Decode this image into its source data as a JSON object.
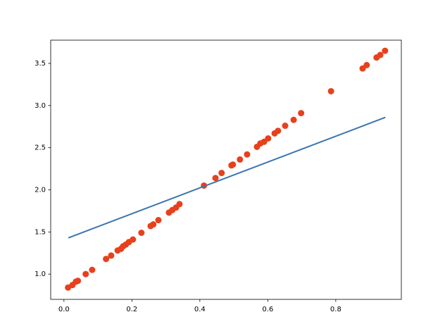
{
  "chart_data": {
    "type": "scatter",
    "xlim": [
      -0.039,
      0.993
    ],
    "ylim": [
      0.7,
      3.776
    ],
    "xticks": [
      {
        "value": 0,
        "label": "0.0"
      },
      0.2,
      0.4,
      0.6,
      0.8
    ],
    "yticks": [
      {
        "value": 1,
        "label": "1.0"
      },
      1.5,
      {
        "value": 2,
        "label": "2.0"
      },
      2.5,
      {
        "value": 3,
        "label": "3.0"
      },
      3.5
    ],
    "series": [
      {
        "kind": "scatter",
        "color": "#e8401c",
        "x": [
          0.012,
          0.025,
          0.035,
          0.041,
          0.064,
          0.083,
          0.124,
          0.139,
          0.158,
          0.168,
          0.174,
          0.182,
          0.191,
          0.203,
          0.228,
          0.255,
          0.263,
          0.278,
          0.309,
          0.319,
          0.33,
          0.34,
          0.412,
          0.446,
          0.464,
          0.493,
          0.497,
          0.518,
          0.539,
          0.568,
          0.578,
          0.589,
          0.601,
          0.62,
          0.63,
          0.651,
          0.676,
          0.698,
          0.786,
          0.879,
          0.891,
          0.92,
          0.931,
          0.945
        ],
        "values": [
          0.84,
          0.87,
          0.91,
          0.92,
          1.0,
          1.05,
          1.18,
          1.22,
          1.28,
          1.3,
          1.33,
          1.35,
          1.38,
          1.41,
          1.49,
          1.57,
          1.59,
          1.64,
          1.73,
          1.76,
          1.79,
          1.83,
          2.05,
          2.14,
          2.2,
          2.29,
          2.3,
          2.36,
          2.42,
          2.51,
          2.55,
          2.57,
          2.61,
          2.67,
          2.7,
          2.76,
          2.83,
          2.91,
          3.17,
          3.44,
          3.48,
          3.57,
          3.6,
          3.65
        ]
      },
      {
        "kind": "line",
        "color": "#3a75b0",
        "x": [
          0.013,
          0.946
        ],
        "values": [
          1.43,
          2.86
        ]
      }
    ]
  }
}
